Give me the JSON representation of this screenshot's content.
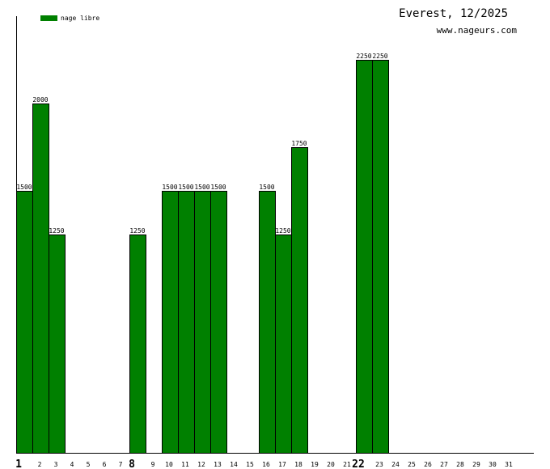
{
  "chart_data": {
    "type": "bar",
    "title": "Everest, 12/2025",
    "source": "www.nageurs.com",
    "legend_position": "top-left",
    "grid": false,
    "categories": [
      "1",
      "2",
      "3",
      "4",
      "5",
      "6",
      "7",
      "8",
      "9",
      "10",
      "11",
      "12",
      "13",
      "14",
      "15",
      "16",
      "17",
      "18",
      "19",
      "20",
      "21",
      "22",
      "23",
      "24",
      "25",
      "26",
      "27",
      "28",
      "29",
      "30",
      "31"
    ],
    "emphasized_categories": [
      "1",
      "8",
      "22"
    ],
    "series": [
      {
        "name": "nage libre",
        "color": "#008000",
        "values": [
          1500,
          2000,
          1250,
          0,
          0,
          0,
          0,
          1250,
          0,
          1500,
          1500,
          1500,
          1500,
          0,
          0,
          1500,
          1250,
          1750,
          0,
          0,
          0,
          2250,
          2250,
          0,
          0,
          0,
          0,
          0,
          0,
          0,
          0
        ]
      }
    ],
    "ylim": [
      0,
      2500
    ]
  }
}
